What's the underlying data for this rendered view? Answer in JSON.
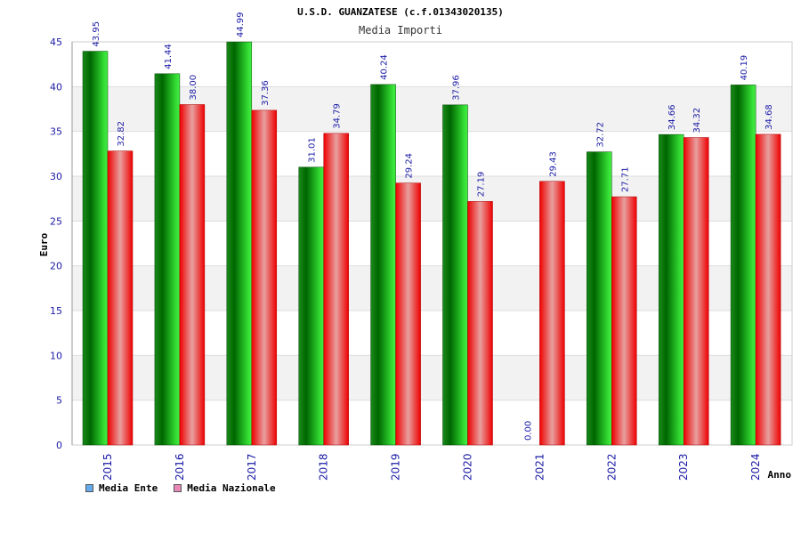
{
  "colors": {
    "ente_dark": "#006600",
    "ente_light": "#55ee55",
    "naz_dark": "#ee0000",
    "naz_light": "#e8a0a0",
    "legend_ente": "#66aaee",
    "legend_naz": "#e888b8",
    "tick_blue": "#1a1aa6"
  },
  "chart_data": {
    "type": "bar",
    "title": "U.S.D. GUANZATESE (c.f.01343020135)",
    "subtitle": "Media Importi",
    "xlabel": "Anno",
    "ylabel": "Euro",
    "ylim": [
      0,
      45
    ],
    "yticks": [
      "0",
      "5",
      "10",
      "15",
      "20",
      "25",
      "30",
      "35",
      "40",
      "45"
    ],
    "categories": [
      "2015",
      "2016",
      "2017",
      "2018",
      "2019",
      "2020",
      "2021",
      "2022",
      "2023",
      "2024"
    ],
    "series": [
      {
        "name": "Media Ente",
        "values": [
          43.95,
          41.44,
          44.99,
          31.01,
          40.24,
          37.96,
          0.0,
          32.72,
          34.66,
          40.19
        ],
        "labels": [
          "43.95",
          "41.44",
          "44.99",
          "31.01",
          "40.24",
          "37.96",
          "0.00",
          "32.72",
          "34.66",
          "40.19"
        ]
      },
      {
        "name": "Media Nazionale",
        "values": [
          32.82,
          38.0,
          37.36,
          34.79,
          29.24,
          27.19,
          29.43,
          27.71,
          34.32,
          34.68
        ],
        "labels": [
          "32.82",
          "38.00",
          "37.36",
          "34.79",
          "29.24",
          "27.19",
          "29.43",
          "27.71",
          "34.32",
          "34.68"
        ]
      }
    ],
    "legend_position": "bottom-left",
    "grid": true
  }
}
